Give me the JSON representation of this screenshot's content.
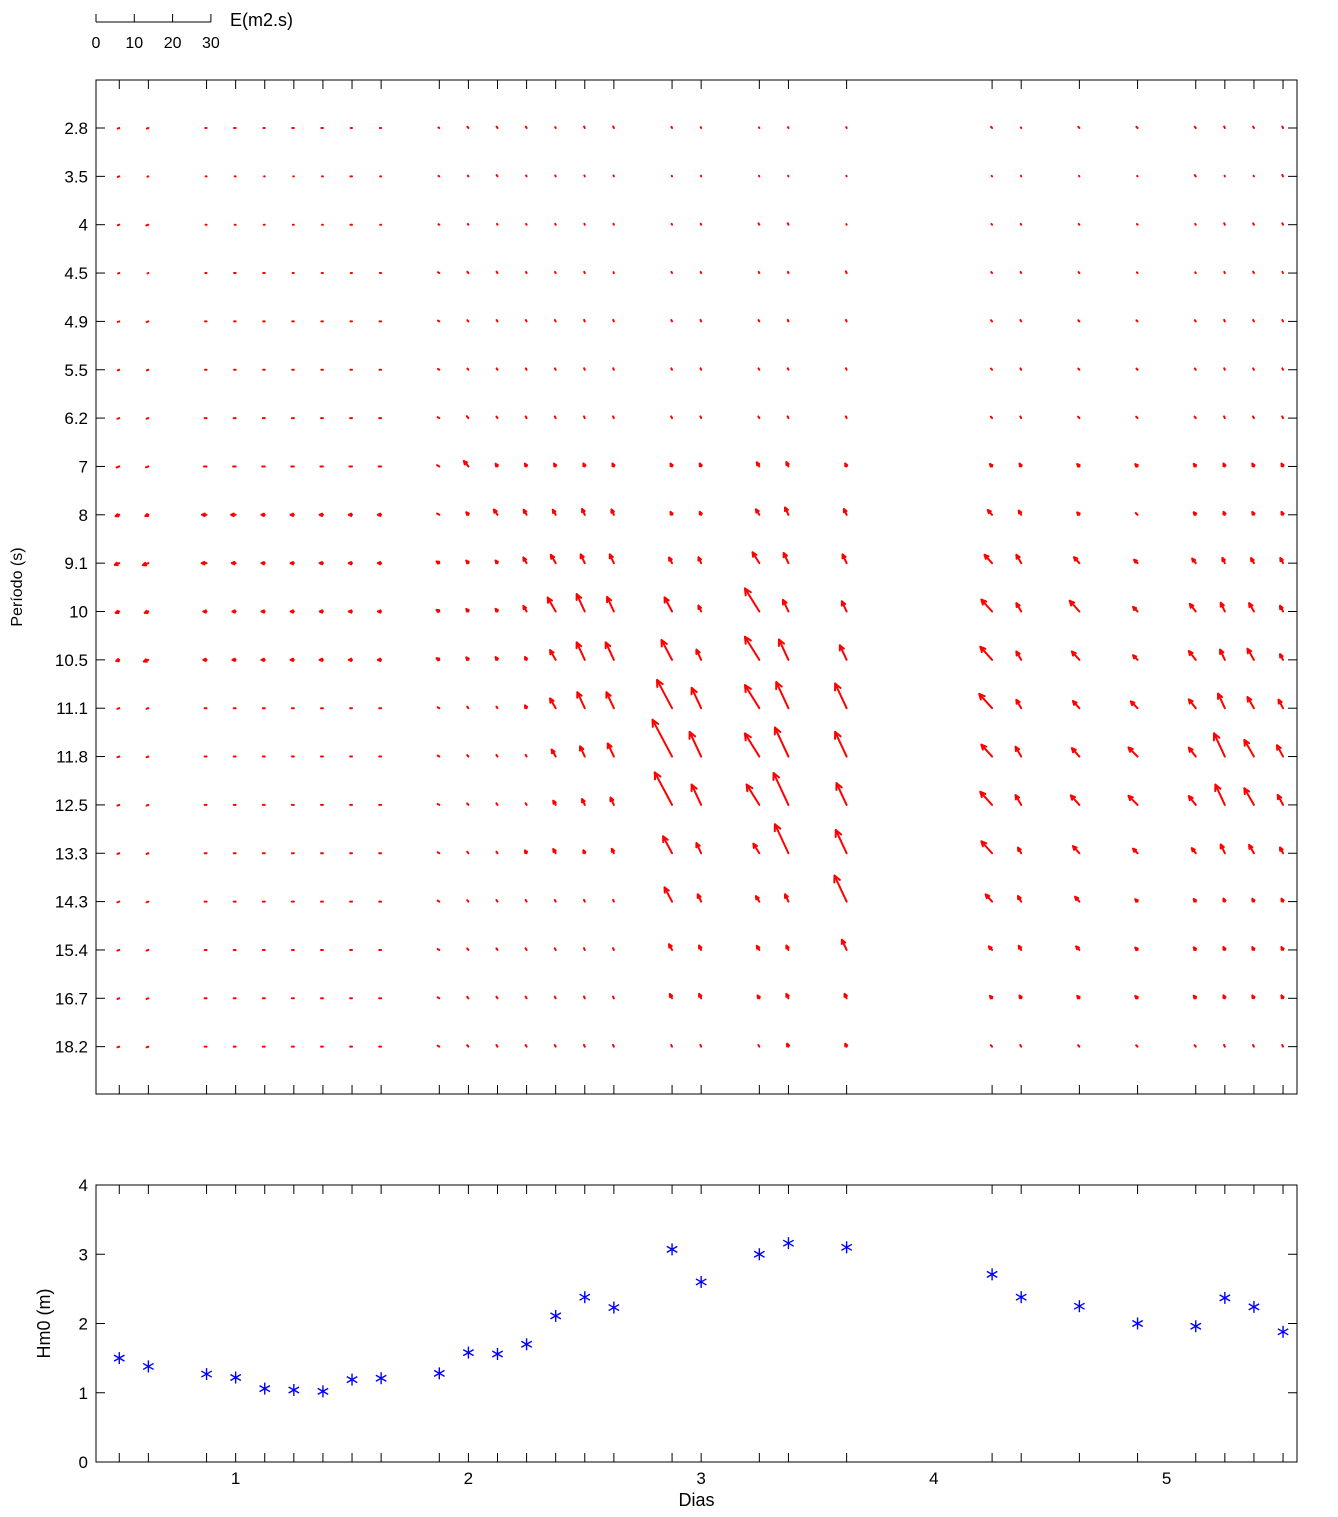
{
  "chart_data": [
    {
      "type": "quiver",
      "xlabel": "",
      "ylabel": "Período (s)",
      "xlim": [
        0.4,
        5.56
      ],
      "y_tick_labels": [
        "2.8",
        "3.5",
        "4",
        "4.5",
        "4.9",
        "5.5",
        "6.2",
        "7",
        "8",
        "9.1",
        "10",
        "10.5",
        "11.1",
        "11.8",
        "12.5",
        "13.3",
        "14.3",
        "15.4",
        "16.7",
        "18.2"
      ],
      "x_ticks": [
        0.5,
        0.625,
        0.875,
        1.0,
        1.125,
        1.25,
        1.375,
        1.5,
        1.625,
        1.875,
        2.0,
        2.125,
        2.25,
        2.375,
        2.5,
        2.625,
        2.875,
        3.0,
        3.25,
        3.375,
        3.625,
        4.25,
        4.375,
        4.625,
        4.875,
        5.125,
        5.25,
        5.375,
        5.5
      ],
      "times": [
        0.5,
        0.625,
        0.875,
        1.0,
        1.125,
        1.25,
        1.375,
        1.5,
        1.625,
        1.875,
        2.0,
        2.125,
        2.25,
        2.375,
        2.5,
        2.625,
        2.875,
        3.0,
        3.25,
        3.375,
        3.625,
        4.25,
        4.375,
        4.625,
        4.875,
        5.125,
        5.25,
        5.375,
        5.5
      ],
      "vector_direction_deg": [
        250,
        250,
        270,
        270,
        270,
        270,
        270,
        270,
        270,
        300,
        320,
        325,
        330,
        330,
        335,
        335,
        332,
        335,
        328,
        335,
        335,
        318,
        330,
        318,
        315,
        322,
        335,
        330,
        332
      ],
      "energy_m2s": [
        [
          0.5,
          0.5,
          0.4,
          0.5,
          0.4,
          0.5,
          0.5,
          0.4,
          0.4,
          0.3,
          0.5,
          0.5,
          0.5,
          0.3,
          0.5,
          0.5,
          0.4,
          0.3,
          0.2,
          0.3,
          0.3,
          0.5,
          0.2,
          0.5,
          0.5,
          0.5,
          0.5,
          0.5,
          0.5
        ],
        [
          0.5,
          0.3,
          0.3,
          0.3,
          0.2,
          0.2,
          0.3,
          0.5,
          0.3,
          0.3,
          0.3,
          0.5,
          0.3,
          0.3,
          0.3,
          0.3,
          0.2,
          0.2,
          0.2,
          0.2,
          0.2,
          0.2,
          0.2,
          0.2,
          0.2,
          0.5,
          0.2,
          0.2,
          0.5
        ],
        [
          0.5,
          0.7,
          0.3,
          0.3,
          0.3,
          0.3,
          0.3,
          0.5,
          0.3,
          0.3,
          0.3,
          0.3,
          0.3,
          0.3,
          0.3,
          0.3,
          0.3,
          0.3,
          0.5,
          0.5,
          0.2,
          0.3,
          0.3,
          0.3,
          0.3,
          0.3,
          0.5,
          0.5,
          0.5
        ],
        [
          0.4,
          0.3,
          0.4,
          0.5,
          0.5,
          0.4,
          0.4,
          0.4,
          0.4,
          0.5,
          0.5,
          0.5,
          0.4,
          0.4,
          0.4,
          0.3,
          0.4,
          0.4,
          0.4,
          0.4,
          0.6,
          0.4,
          0.4,
          0.4,
          0.3,
          0.3,
          0.4,
          0.5,
          0.4
        ],
        [
          0.5,
          0.6,
          0.5,
          0.5,
          0.5,
          0.5,
          0.5,
          0.5,
          0.5,
          0.5,
          0.5,
          0.5,
          0.5,
          0.5,
          0.5,
          0.5,
          0.5,
          0.5,
          0.5,
          0.5,
          0.5,
          0.5,
          0.5,
          0.5,
          0.5,
          0.5,
          0.5,
          0.5,
          0.5
        ],
        [
          0.5,
          0.5,
          0.5,
          0.5,
          0.5,
          0.5,
          0.5,
          0.5,
          0.5,
          0.5,
          0.5,
          0.5,
          0.5,
          0.5,
          0.5,
          0.5,
          0.5,
          0.5,
          0.5,
          0.5,
          0.5,
          0.5,
          0.5,
          0.5,
          0.5,
          0.5,
          0.5,
          0.5,
          0.5
        ],
        [
          0.6,
          0.6,
          0.6,
          0.6,
          0.6,
          0.6,
          0.6,
          0.6,
          0.6,
          0.6,
          0.8,
          0.6,
          0.6,
          0.6,
          0.6,
          0.6,
          0.6,
          0.6,
          0.6,
          0.6,
          0.6,
          0.6,
          0.6,
          0.6,
          0.6,
          0.6,
          0.6,
          0.6,
          0.6
        ],
        [
          0.9,
          0.8,
          0.8,
          0.8,
          0.8,
          0.8,
          0.8,
          0.8,
          0.8,
          0.8,
          2.2,
          1.0,
          1.0,
          1.0,
          1.0,
          1.0,
          1.0,
          1.0,
          1.5,
          1.5,
          1.0,
          1.0,
          1.0,
          1.0,
          1.0,
          1.0,
          1.0,
          1.0,
          1.0
        ],
        [
          1.2,
          1.0,
          1.4,
          1.4,
          1.0,
          1.0,
          1.0,
          1.0,
          1.0,
          0.8,
          1.0,
          2.0,
          1.8,
          1.8,
          2.0,
          1.8,
          1.0,
          1.0,
          2.0,
          2.5,
          2.0,
          2.0,
          1.5,
          1.0,
          0.8,
          1.0,
          1.0,
          1.0,
          1.0
        ],
        [
          1.5,
          1.8,
          1.5,
          1.2,
          1.0,
          1.0,
          1.0,
          1.0,
          1.0,
          1.0,
          1.0,
          1.0,
          2.0,
          3.0,
          3.0,
          3.0,
          2.0,
          2.0,
          4.0,
          3.5,
          3.0,
          3.5,
          3.0,
          2.5,
          1.5,
          1.8,
          1.8,
          1.8,
          1.8
        ],
        [
          1.2,
          1.2,
          1.0,
          1.0,
          1.0,
          1.0,
          1.0,
          1.0,
          1.0,
          1.0,
          1.0,
          1.0,
          2.0,
          5.0,
          6.0,
          5.0,
          5.0,
          2.0,
          8.5,
          4.0,
          3.5,
          5.0,
          3.0,
          4.5,
          2.0,
          3.0,
          3.0,
          3.0,
          2.0
        ],
        [
          1.0,
          1.5,
          1.0,
          1.0,
          1.0,
          1.0,
          1.0,
          1.0,
          1.0,
          1.0,
          1.0,
          1.0,
          1.0,
          3.5,
          6.0,
          6.0,
          7.0,
          3.5,
          8.5,
          7.0,
          5.0,
          5.5,
          3.0,
          3.5,
          2.0,
          3.5,
          3.5,
          4.0,
          2.0
        ],
        [
          0.6,
          0.6,
          0.6,
          0.6,
          0.6,
          0.6,
          0.6,
          0.6,
          0.6,
          0.6,
          0.6,
          0.6,
          1.0,
          3.5,
          5.5,
          5.5,
          10.0,
          7.0,
          8.5,
          9.0,
          8.5,
          6.0,
          3.0,
          3.0,
          3.0,
          3.5,
          5.0,
          4.0,
          3.0
        ],
        [
          0.6,
          0.6,
          0.6,
          0.6,
          0.6,
          0.6,
          0.6,
          0.6,
          0.6,
          0.6,
          0.6,
          0.6,
          0.6,
          2.5,
          3.5,
          4.5,
          13.0,
          8.5,
          8.5,
          10.0,
          8.5,
          5.0,
          3.5,
          3.5,
          4.0,
          3.5,
          8.0,
          6.0,
          4.0
        ],
        [
          0.6,
          0.6,
          0.6,
          0.6,
          0.6,
          0.6,
          0.6,
          0.6,
          0.6,
          0.6,
          0.6,
          0.6,
          0.6,
          1.5,
          2.0,
          2.5,
          11.5,
          7.0,
          7.5,
          11.0,
          7.5,
          5.5,
          3.5,
          4.0,
          4.0,
          3.5,
          7.0,
          6.0,
          3.5
        ],
        [
          0.6,
          0.6,
          0.6,
          0.6,
          0.6,
          0.6,
          0.6,
          0.6,
          0.6,
          0.6,
          0.6,
          0.6,
          1.0,
          1.5,
          1.0,
          1.5,
          6.0,
          3.5,
          3.5,
          10.0,
          8.0,
          5.0,
          2.0,
          3.0,
          2.0,
          2.0,
          3.0,
          3.0,
          2.0
        ],
        [
          0.6,
          0.6,
          0.6,
          0.6,
          0.6,
          0.6,
          0.6,
          0.6,
          0.6,
          0.6,
          0.6,
          0.6,
          0.6,
          0.6,
          0.6,
          0.6,
          5.0,
          2.5,
          2.0,
          2.5,
          9.0,
          3.0,
          2.0,
          2.0,
          1.0,
          1.0,
          1.0,
          1.0,
          1.0
        ],
        [
          0.6,
          0.6,
          0.6,
          0.6,
          0.6,
          0.6,
          0.6,
          0.6,
          0.6,
          0.6,
          0.6,
          0.6,
          0.6,
          0.6,
          0.6,
          0.6,
          2.0,
          1.5,
          1.5,
          1.5,
          3.5,
          1.5,
          1.5,
          1.5,
          1.0,
          1.0,
          1.0,
          1.0,
          1.0
        ],
        [
          0.6,
          0.6,
          0.6,
          0.6,
          0.6,
          0.6,
          0.6,
          0.6,
          0.6,
          0.6,
          0.6,
          0.6,
          0.6,
          0.6,
          0.6,
          0.6,
          1.5,
          1.5,
          1.0,
          1.5,
          1.5,
          1.0,
          1.0,
          1.0,
          1.0,
          1.0,
          1.0,
          1.0,
          1.0
        ],
        [
          0.6,
          0.6,
          0.6,
          0.6,
          0.6,
          0.6,
          0.6,
          0.6,
          0.6,
          0.6,
          0.6,
          0.6,
          0.6,
          0.6,
          0.6,
          0.6,
          0.6,
          0.6,
          0.6,
          1.0,
          1.0,
          0.6,
          0.6,
          0.6,
          0.6,
          0.6,
          0.6,
          0.6,
          0.6
        ]
      ],
      "scale_bar": {
        "label": "E(m2.s)",
        "tick_labels": [
          "0",
          "10",
          "20",
          "30"
        ],
        "max_value": 30
      },
      "color": "#ff0000",
      "grid": false
    },
    {
      "type": "scatter",
      "xlabel": "Dias",
      "ylabel": "Hm0 (m)",
      "xlim": [
        0.4,
        5.56
      ],
      "ylim": [
        0,
        4
      ],
      "x_tick_labels": [
        1,
        2,
        3,
        4,
        5
      ],
      "y_tick_labels": [
        0,
        1,
        2,
        3,
        4
      ],
      "marker": "*",
      "color": "#0000ff",
      "grid": false,
      "x": [
        0.5,
        0.625,
        0.875,
        1.0,
        1.125,
        1.25,
        1.375,
        1.5,
        1.625,
        1.875,
        2.0,
        2.125,
        2.25,
        2.375,
        2.5,
        2.625,
        2.875,
        3.0,
        3.25,
        3.375,
        3.625,
        4.25,
        4.375,
        4.625,
        4.875,
        5.125,
        5.25,
        5.375,
        5.5
      ],
      "y": [
        1.5,
        1.38,
        1.27,
        1.22,
        1.06,
        1.04,
        1.02,
        1.19,
        1.21,
        1.28,
        1.58,
        1.56,
        1.7,
        2.11,
        2.38,
        2.23,
        3.07,
        2.6,
        3.0,
        3.16,
        3.1,
        2.71,
        2.38,
        2.25,
        2.0,
        1.96,
        2.37,
        2.24,
        1.88
      ]
    }
  ]
}
